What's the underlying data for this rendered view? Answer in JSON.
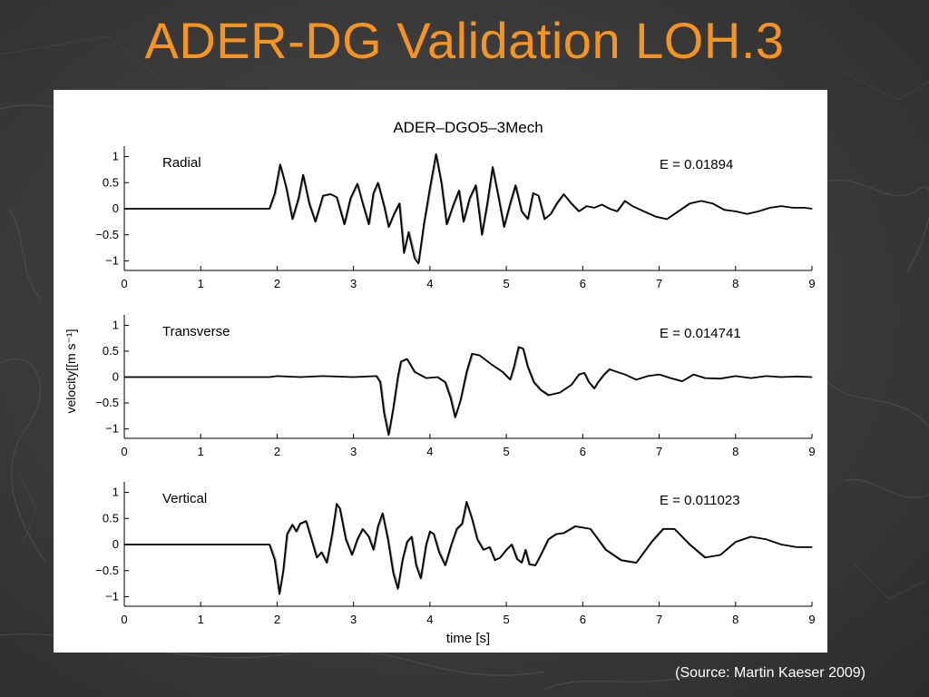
{
  "slide": {
    "title": "ADER-DG Validation LOH.3",
    "source": "(Source: Martin Kaeser 2009)"
  },
  "colors": {
    "title": "#f7941d",
    "background": "#3a3a3a",
    "reference_trace": "#8a8a8a",
    "ader_trace": "#000000"
  },
  "chart_data": {
    "type": "line",
    "title": "ADER–DGO5–3Mech",
    "xlabel": "time [s]",
    "ylabel": "velocity[[m s⁻¹]",
    "xlim": [
      0,
      9
    ],
    "ylim": [
      -1.2,
      1.2
    ],
    "xticks": [
      0,
      1,
      2,
      3,
      4,
      5,
      6,
      7,
      8,
      9
    ],
    "yticks": [
      1,
      0.5,
      0,
      -0.5,
      -1
    ],
    "ytick_labels": [
      "1",
      "0.5",
      "0",
      "−0.5",
      "−1"
    ],
    "grid": false,
    "panels": [
      {
        "name": "Radial",
        "error_label": "E = 0.01894",
        "series": [
          {
            "x": [
              0,
              1.9,
              1.97,
              2.04,
              2.12,
              2.2,
              2.28,
              2.34,
              2.42,
              2.5,
              2.6,
              2.7,
              2.78,
              2.88,
              2.96,
              3.05,
              3.12,
              3.2,
              3.26,
              3.32,
              3.4,
              3.46,
              3.53,
              3.6,
              3.66,
              3.72,
              3.8,
              3.85,
              3.92,
              4,
              4.08,
              4.15,
              4.22,
              4.3,
              4.38,
              4.44,
              4.52,
              4.6,
              4.68,
              4.75,
              4.82,
              4.9,
              4.97,
              5.05,
              5.12,
              5.2,
              5.28,
              5.35,
              5.42,
              5.5,
              5.58,
              5.66,
              5.75,
              5.85,
              5.95,
              6.05,
              6.15,
              6.25,
              6.35,
              6.45,
              6.55,
              6.65,
              6.8,
              6.95,
              7.1,
              7.25,
              7.4,
              7.55,
              7.7,
              7.85,
              8,
              8.15,
              8.3,
              8.45,
              8.6,
              8.75,
              8.9,
              9
            ],
            "y": [
              0,
              0,
              0.3,
              0.85,
              0.4,
              -0.2,
              0.2,
              0.65,
              0.1,
              -0.25,
              0.25,
              0.28,
              0.22,
              -0.3,
              0.2,
              0.48,
              0.1,
              -0.3,
              0.3,
              0.5,
              0.05,
              -0.35,
              -0.1,
              0.1,
              -0.85,
              -0.45,
              -0.95,
              -1.05,
              -0.3,
              0.4,
              1.05,
              0.5,
              -0.3,
              0.05,
              0.35,
              -0.25,
              0.2,
              0.45,
              -0.5,
              0.1,
              0.8,
              0.2,
              -0.35,
              0.1,
              0.45,
              -0.05,
              -0.2,
              0.3,
              0.25,
              -0.2,
              -0.1,
              0.1,
              0.28,
              0.1,
              -0.05,
              0.05,
              0.02,
              0.08,
              0.0,
              -0.05,
              0.15,
              0.05,
              -0.05,
              -0.15,
              -0.2,
              -0.05,
              0.1,
              0.15,
              0.1,
              -0.02,
              -0.05,
              -0.1,
              -0.05,
              0.02,
              0.05,
              0.02,
              0.02,
              0.0
            ]
          }
        ]
      },
      {
        "name": "Transverse",
        "error_label": "E = 0.014741",
        "series": [
          {
            "x": [
              0,
              1.9,
              2,
              2.3,
              2.6,
              3,
              3.3,
              3.35,
              3.4,
              3.46,
              3.52,
              3.58,
              3.62,
              3.7,
              3.8,
              3.95,
              4.1,
              4.2,
              4.27,
              4.33,
              4.4,
              4.48,
              4.55,
              4.65,
              4.8,
              4.95,
              5.05,
              5.1,
              5.16,
              5.22,
              5.28,
              5.36,
              5.45,
              5.55,
              5.7,
              5.85,
              5.95,
              6.02,
              6.08,
              6.15,
              6.2,
              6.28,
              6.35,
              6.45,
              6.55,
              6.7,
              6.85,
              7,
              7.15,
              7.3,
              7.45,
              7.6,
              7.8,
              8,
              8.2,
              8.4,
              8.6,
              8.8,
              9
            ],
            "y": [
              0,
              0,
              0.02,
              0.0,
              0.02,
              0.0,
              0.02,
              -0.1,
              -0.7,
              -1.12,
              -0.6,
              0.0,
              0.3,
              0.35,
              0.1,
              -0.02,
              0.0,
              -0.1,
              -0.4,
              -0.78,
              -0.45,
              0.1,
              0.45,
              0.42,
              0.25,
              0.1,
              -0.05,
              0.2,
              0.58,
              0.55,
              0.2,
              -0.1,
              -0.25,
              -0.35,
              -0.3,
              -0.15,
              0.05,
              0.08,
              -0.1,
              -0.22,
              -0.1,
              0.05,
              0.15,
              0.1,
              0.05,
              -0.05,
              0.02,
              0.05,
              -0.02,
              -0.08,
              0.05,
              -0.02,
              -0.03,
              0.02,
              -0.02,
              0.02,
              0.0,
              0.01,
              0.0
            ]
          }
        ]
      },
      {
        "name": "Vertical",
        "error_label": "E = 0.011023",
        "series": [
          {
            "x": [
              0,
              1.9,
              1.97,
              2.03,
              2.08,
              2.13,
              2.2,
              2.25,
              2.3,
              2.38,
              2.45,
              2.52,
              2.58,
              2.65,
              2.72,
              2.78,
              2.82,
              2.9,
              2.98,
              3.05,
              3.12,
              3.2,
              3.26,
              3.32,
              3.38,
              3.45,
              3.52,
              3.58,
              3.64,
              3.7,
              3.76,
              3.82,
              3.88,
              3.95,
              4,
              4.05,
              4.12,
              4.2,
              4.28,
              4.35,
              4.42,
              4.48,
              4.55,
              4.62,
              4.7,
              4.78,
              4.85,
              4.92,
              5,
              5.07,
              5.14,
              5.2,
              5.25,
              5.3,
              5.38,
              5.45,
              5.55,
              5.65,
              5.75,
              5.9,
              6.1,
              6.3,
              6.5,
              6.7,
              6.9,
              7.05,
              7.2,
              7.4,
              7.6,
              7.8,
              8,
              8.2,
              8.4,
              8.6,
              8.8,
              9
            ],
            "y": [
              0,
              0,
              -0.3,
              -0.95,
              -0.5,
              0.2,
              0.38,
              0.25,
              0.4,
              0.45,
              0.1,
              -0.25,
              -0.15,
              -0.35,
              0.2,
              0.78,
              0.7,
              0.1,
              -0.2,
              0.1,
              0.3,
              0.15,
              -0.1,
              0.35,
              0.6,
              0.1,
              -0.55,
              -0.85,
              -0.3,
              0.05,
              0.15,
              -0.4,
              -0.65,
              0.0,
              0.25,
              0.2,
              -0.15,
              -0.4,
              0.0,
              0.3,
              0.4,
              0.82,
              0.5,
              0.1,
              -0.1,
              -0.05,
              -0.3,
              -0.25,
              -0.1,
              0.0,
              -0.28,
              -0.35,
              -0.1,
              -0.38,
              -0.4,
              -0.2,
              0.1,
              0.2,
              0.22,
              0.35,
              0.3,
              -0.1,
              -0.3,
              -0.35,
              0.05,
              0.3,
              0.3,
              0.0,
              -0.25,
              -0.2,
              0.05,
              0.15,
              0.1,
              0.0,
              -0.05,
              -0.05
            ]
          }
        ]
      }
    ]
  }
}
